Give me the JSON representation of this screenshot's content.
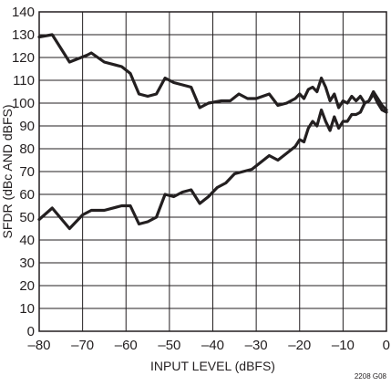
{
  "chart_data": {
    "type": "line",
    "title": "",
    "xlabel": "INPUT LEVEL  (dBFS)",
    "ylabel": "SFDR  (dBc AND dBFS)",
    "figure_id": "2208 G08",
    "xlim": [
      -80,
      0
    ],
    "ylim": [
      0,
      140
    ],
    "x_ticks": [
      -80,
      -70,
      -60,
      -50,
      -40,
      -30,
      -20,
      -10,
      0
    ],
    "x_tick_labels": [
      "–80",
      "–70",
      "–60",
      "–50",
      "–40",
      "–30",
      "–20",
      "–10",
      "0"
    ],
    "y_ticks": [
      0,
      10,
      20,
      30,
      40,
      50,
      60,
      70,
      80,
      90,
      100,
      110,
      120,
      130,
      140
    ],
    "y_tick_labels": [
      "0",
      "10",
      "20",
      "30",
      "40",
      "50",
      "60",
      "70",
      "80",
      "90",
      "100",
      "110",
      "120",
      "130",
      "140"
    ],
    "grid": true,
    "line_color": "#231f20",
    "series": [
      {
        "x": [
          -80,
          -77,
          -73,
          -69,
          -68,
          -65,
          -61,
          -59,
          -57,
          -55,
          -53,
          -51,
          -49,
          -47,
          -45,
          -43,
          -41,
          -38,
          -36,
          -34,
          -32,
          -30,
          -27,
          -25,
          -23,
          -21,
          -20,
          -19,
          -18,
          -17,
          -16,
          -15,
          -14,
          -13,
          -12,
          -11,
          -10,
          -9,
          -8,
          -7,
          -6,
          -5,
          -4,
          -3,
          -2,
          -1,
          0
        ],
        "y": [
          129,
          130,
          118,
          121,
          122,
          118,
          116,
          113,
          104,
          103,
          104,
          111,
          109,
          108,
          107,
          98,
          100,
          101,
          101,
          104,
          102,
          102,
          104,
          99,
          100,
          102,
          104,
          102,
          106,
          107,
          105,
          111,
          107,
          101,
          104,
          98,
          101,
          100,
          103,
          101,
          103,
          100,
          101,
          105,
          102,
          99,
          97
        ]
      },
      {
        "x": [
          -80,
          -77,
          -73,
          -70,
          -68,
          -65,
          -61,
          -59,
          -57,
          -55,
          -53,
          -51,
          -49,
          -47,
          -45,
          -43,
          -41,
          -39,
          -37,
          -35,
          -33,
          -31,
          -29,
          -27,
          -25,
          -23,
          -21,
          -20,
          -19,
          -18,
          -17,
          -16,
          -15,
          -14,
          -13,
          -12,
          -11,
          -10,
          -9,
          -8,
          -7,
          -6,
          -5,
          -4,
          -3,
          -2,
          -1,
          0
        ],
        "y": [
          49,
          54,
          45,
          51,
          53,
          53,
          55,
          55,
          47,
          48,
          50,
          60,
          59,
          61,
          62,
          56,
          59,
          63,
          65,
          69,
          70,
          71,
          74,
          77,
          75,
          78,
          81,
          84,
          83,
          89,
          92,
          90,
          97,
          92,
          88,
          94,
          89,
          92,
          92,
          95,
          95,
          96,
          100,
          101,
          104,
          100,
          97,
          96
        ]
      }
    ]
  }
}
